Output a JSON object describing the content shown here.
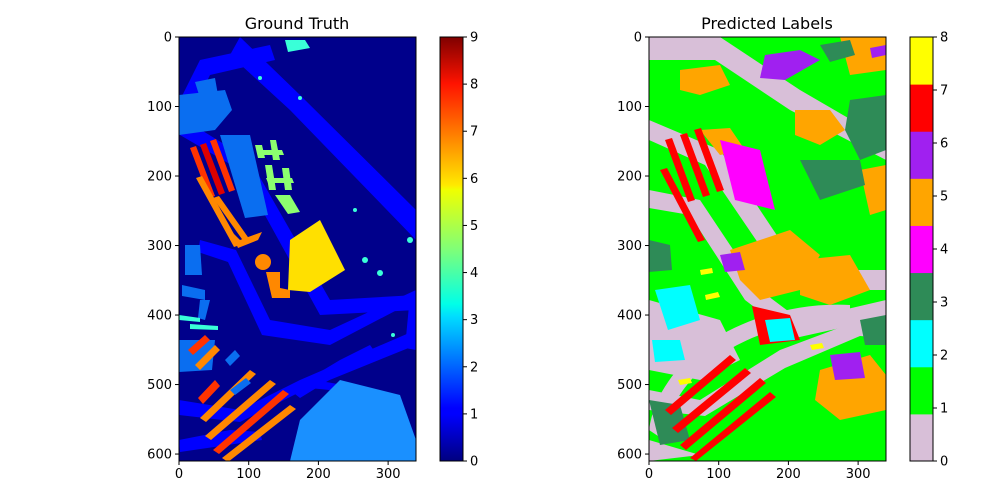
{
  "chart_data": [
    {
      "type": "heatmap",
      "title": "Ground Truth",
      "x_ticks": [
        0,
        100,
        200,
        300
      ],
      "y_ticks": [
        0,
        100,
        200,
        300,
        400,
        500,
        600
      ],
      "xlim": [
        0,
        340
      ],
      "ylim": [
        610,
        0
      ],
      "colormap": "jet",
      "colorbar": {
        "min": 0,
        "max": 9,
        "ticks": [
          0,
          1,
          2,
          3,
          4,
          5,
          6,
          7,
          8,
          9
        ]
      },
      "image_colors": {
        "background": "#00008b",
        "roads": "#0000ff",
        "meadows": "#0a6ef0",
        "trees": "#39ffd8",
        "gravel": "#8cff6f",
        "painted_metal": "#ffe000",
        "bare_soil": "#ff8800",
        "bitumen": "#ff3300",
        "shadows": "#dd0000",
        "soil_field": "#1a90ff"
      },
      "grid": false
    },
    {
      "type": "heatmap",
      "title": "Predicted Labels",
      "x_ticks": [
        0,
        100,
        200,
        300
      ],
      "y_ticks": [
        0,
        100,
        200,
        300,
        400,
        500,
        600
      ],
      "xlim": [
        0,
        340
      ],
      "ylim": [
        610,
        0
      ],
      "colormap": "discrete",
      "colorbar": {
        "min": 0,
        "max": 8,
        "ticks": [
          0,
          1,
          2,
          3,
          4,
          5,
          6,
          7,
          8
        ],
        "colors": [
          "#d8bfd8",
          "#00ff00",
          "#00ffff",
          "#2e8b57",
          "#ff00ff",
          "#ffa500",
          "#a020f0",
          "#ff0000",
          "#ffff00"
        ]
      },
      "grid": false
    }
  ]
}
